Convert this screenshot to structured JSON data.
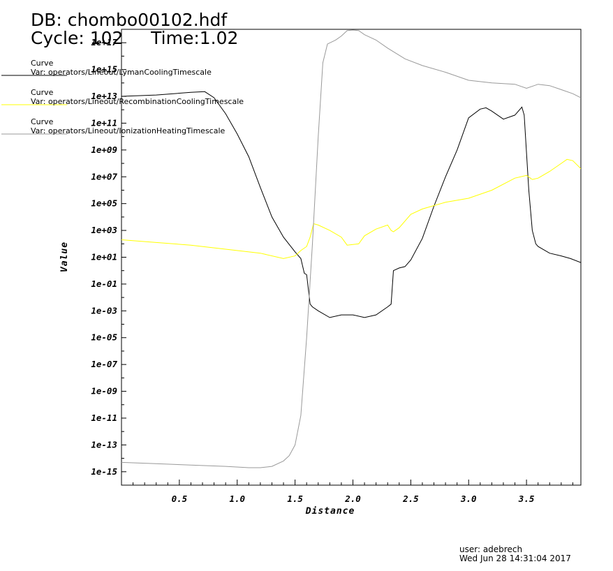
{
  "header": {
    "db": "DB: chombo00102.hdf",
    "cycle": "Cycle: 102",
    "time": "Time:1.02"
  },
  "footer": {
    "user": "user: adebrech",
    "date": "Wed Jun 28 14:31:04 2017"
  },
  "chart_data": {
    "type": "line",
    "xlabel": "Distance",
    "ylabel": "Value",
    "xlim": [
      0.0,
      3.97
    ],
    "ylim_log10": [
      -16.0,
      18.0
    ],
    "y_scale": "log",
    "x_ticks": [
      0.5,
      1.0,
      1.5,
      2.0,
      2.5,
      3.0,
      3.5
    ],
    "x_tick_labels": [
      "0.5",
      "1.0",
      "1.5",
      "2.0",
      "2.5",
      "3.0",
      "3.5"
    ],
    "y_ticks_log10": [
      -15,
      -13,
      -11,
      -9,
      -7,
      -5,
      -3,
      -1,
      1,
      3,
      5,
      7,
      9,
      11,
      13,
      15,
      17
    ],
    "y_tick_labels": [
      "1e-15",
      "1e-13",
      "1e-11",
      "1e-09",
      "1e-07",
      "1e-05",
      "1e-03",
      "1e-01",
      "1e+01",
      "1e+03",
      "1e+05",
      "1e+07",
      "1e+09",
      "1e+11",
      "1e+13",
      "1e+15",
      "1e+17"
    ],
    "legend_position": "top-left",
    "series": [
      {
        "legend_title": "Curve",
        "name": "Var: operators/Lineout/LymanCoolingTimescale",
        "color": "#000000",
        "x": [
          0.0,
          0.3,
          0.6,
          0.72,
          0.8,
          0.9,
          1.0,
          1.1,
          1.2,
          1.3,
          1.4,
          1.5,
          1.55,
          1.58,
          1.6,
          1.63,
          1.65,
          1.7,
          1.8,
          1.9,
          2.0,
          2.1,
          2.2,
          2.3,
          2.33,
          2.35,
          2.4,
          2.45,
          2.5,
          2.6,
          2.7,
          2.8,
          2.9,
          3.0,
          3.1,
          3.15,
          3.2,
          3.3,
          3.4,
          3.46,
          3.48,
          3.52,
          3.55,
          3.58,
          3.6,
          3.7,
          3.8,
          3.88,
          3.97
        ],
        "log10_y": [
          13.0,
          13.1,
          13.3,
          13.35,
          12.9,
          11.7,
          10.2,
          8.5,
          6.2,
          4.0,
          2.5,
          1.4,
          0.9,
          -0.2,
          -0.3,
          -2.5,
          -2.7,
          -3.0,
          -3.5,
          -3.3,
          -3.3,
          -3.5,
          -3.3,
          -2.7,
          -2.5,
          0.0,
          0.2,
          0.3,
          0.8,
          2.4,
          4.8,
          7.0,
          9.0,
          11.4,
          12.05,
          12.15,
          11.9,
          11.3,
          11.6,
          12.2,
          11.6,
          6.0,
          3.0,
          2.0,
          1.8,
          1.3,
          1.1,
          0.9,
          0.6
        ]
      },
      {
        "legend_title": "Curve",
        "name": "Var: operators/Lineout/RecombinationCoolingTimescale",
        "color": "#ffff00",
        "x": [
          0.0,
          0.3,
          0.6,
          0.9,
          1.2,
          1.4,
          1.5,
          1.55,
          1.6,
          1.63,
          1.66,
          1.7,
          1.8,
          1.9,
          1.95,
          2.0,
          2.05,
          2.1,
          2.2,
          2.3,
          2.33,
          2.35,
          2.4,
          2.5,
          2.6,
          2.8,
          3.0,
          3.2,
          3.4,
          3.5,
          3.55,
          3.6,
          3.7,
          3.8,
          3.85,
          3.9,
          3.97
        ],
        "log10_y": [
          2.3,
          2.1,
          1.9,
          1.6,
          1.3,
          0.9,
          1.1,
          1.5,
          1.8,
          2.5,
          3.5,
          3.4,
          3.0,
          2.5,
          1.9,
          1.95,
          2.0,
          2.6,
          3.1,
          3.4,
          3.0,
          2.9,
          3.2,
          4.2,
          4.6,
          5.1,
          5.4,
          6.0,
          6.9,
          7.1,
          6.8,
          6.9,
          7.4,
          8.0,
          8.3,
          8.2,
          7.6
        ]
      },
      {
        "legend_title": "Curve",
        "name": "Var: operators/Lineout/IonizationHeatingTimescale",
        "color": "#999999",
        "x": [
          0.0,
          0.3,
          0.6,
          0.9,
          1.1,
          1.2,
          1.3,
          1.4,
          1.45,
          1.5,
          1.55,
          1.6,
          1.65,
          1.7,
          1.74,
          1.78,
          1.85,
          1.9,
          1.95,
          2.0,
          2.05,
          2.1,
          2.2,
          2.3,
          2.45,
          2.6,
          2.8,
          3.0,
          3.2,
          3.4,
          3.5,
          3.6,
          3.7,
          3.8,
          3.9,
          3.97
        ],
        "log10_y": [
          -14.3,
          -14.4,
          -14.5,
          -14.6,
          -14.7,
          -14.7,
          -14.6,
          -14.2,
          -13.8,
          -13.0,
          -10.8,
          -5.0,
          2.0,
          10.0,
          15.5,
          16.9,
          17.2,
          17.5,
          17.9,
          17.95,
          17.9,
          17.6,
          17.2,
          16.6,
          15.8,
          15.3,
          14.8,
          14.2,
          14.0,
          13.9,
          13.6,
          13.9,
          13.8,
          13.5,
          13.2,
          12.9
        ]
      }
    ]
  }
}
